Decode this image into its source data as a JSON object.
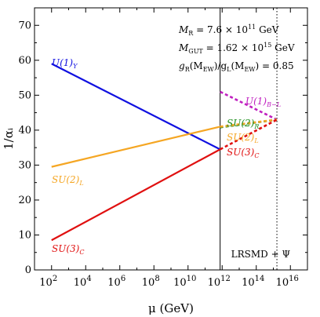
{
  "chart_data": {
    "type": "line",
    "xlabel": "μ (GeV)",
    "ylabel": "1/αᵢ",
    "xscale": "log",
    "xlim": [
      10,
      1e+17
    ],
    "ylim": [
      0,
      75
    ],
    "x_ticks": [
      {
        "value": 100,
        "base": "10",
        "exp": "2"
      },
      {
        "value": 10000,
        "base": "10",
        "exp": "4"
      },
      {
        "value": 1000000,
        "base": "10",
        "exp": "6"
      },
      {
        "value": 100000000,
        "base": "10",
        "exp": "8"
      },
      {
        "value": 10000000000,
        "base": "10",
        "exp": "10"
      },
      {
        "value": 1000000000000,
        "base": "10",
        "exp": "12"
      },
      {
        "value": 100000000000000,
        "base": "10",
        "exp": "14"
      },
      {
        "value": 10000000000000000,
        "base": "10",
        "exp": "16"
      }
    ],
    "y_ticks": [
      "0",
      "10",
      "20",
      "30",
      "40",
      "50",
      "60",
      "70"
    ],
    "vertical_lines": [
      {
        "x": 760000000000.0,
        "style": "solid",
        "color": "#000000"
      },
      {
        "x": 1620000000000000.0,
        "style": "dotted",
        "color": "#000000"
      }
    ],
    "series": [
      {
        "name": "U(1)_Y",
        "color": "#1010e0",
        "style": "solid",
        "x": [
          100,
          760000000000.0
        ],
        "y": [
          59,
          34.5
        ]
      },
      {
        "name": "SU(2)_L",
        "color": "#f5a623",
        "style": "solid",
        "x": [
          100,
          760000000000.0
        ],
        "y": [
          29.5,
          41
        ]
      },
      {
        "name": "SU(3)_C",
        "color": "#e01010",
        "style": "solid",
        "x": [
          100,
          760000000000.0
        ],
        "y": [
          8.5,
          34.5
        ]
      },
      {
        "name": "U(1)_{B-L}",
        "color": "#c020c0",
        "style": "dashed",
        "x": [
          760000000000.0,
          1620000000000000.0
        ],
        "y": [
          51,
          43
        ]
      },
      {
        "name": "SU(2)_R",
        "color": "#1f8f1f",
        "style": "dashed",
        "x": [
          760000000000.0,
          1620000000000000.0
        ],
        "y": [
          40.8,
          43
        ]
      },
      {
        "name": "SU(2)_L",
        "color": "#f5a623",
        "style": "dashed",
        "x": [
          760000000000.0,
          1620000000000000.0
        ],
        "y": [
          41,
          43
        ]
      },
      {
        "name": "SU(3)_C",
        "color": "#e01010",
        "style": "dashed",
        "x": [
          760000000000.0,
          1620000000000000.0
        ],
        "y": [
          34.5,
          43
        ]
      }
    ],
    "series_labels": [
      {
        "base": "U(1)",
        "sub": "Y",
        "color": "#1010e0"
      },
      {
        "base": "SU(2)",
        "sub": "L",
        "color": "#f5a623"
      },
      {
        "base": "SU(3)",
        "sub": "C",
        "color": "#e01010"
      },
      {
        "base": "U(1)",
        "sub": "B−L",
        "color": "#c020c0"
      },
      {
        "base": "SU(2)",
        "sub": "R",
        "color": "#1f8f1f"
      },
      {
        "base": "SU(2)",
        "sub": "L",
        "color": "#f5a623"
      },
      {
        "base": "SU(3)",
        "sub": "C",
        "color": "#e01010"
      }
    ],
    "annotations": [
      {
        "lhs": "M",
        "lhs_sub": "R",
        "rhs": " = 7.6 × 10",
        "sup": "11",
        "tail": " GeV"
      },
      {
        "lhs": "M",
        "lhs_sub": "GUT",
        "rhs": " = 1.62 × 10",
        "sup": "15",
        "tail": " GeV"
      },
      {
        "lhs": "g",
        "lhs_sub": "R",
        "rhs": "(M",
        "rhs_sub": "EW",
        "mid": ")/g",
        "mid_sub": "L",
        "mid2": "(M",
        "mid2_sub": "EW",
        "tail": ") = 0.85"
      }
    ],
    "model_label": "LRSMD + Ψ"
  }
}
